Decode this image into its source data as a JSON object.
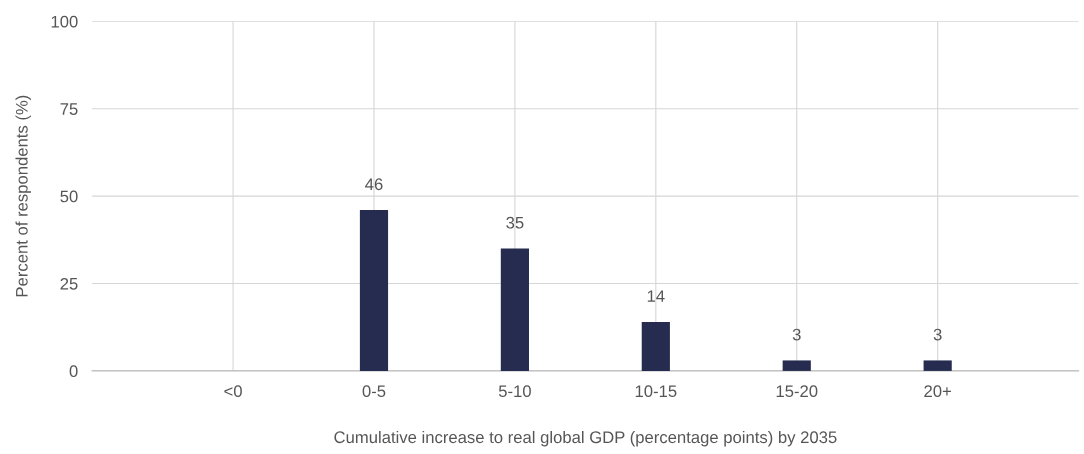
{
  "chart_data": {
    "type": "bar",
    "xlabel": "Cumulative increase to real global GDP (percentage points) by 2035",
    "ylabel": "Percent of respondents (%)",
    "categories": [
      "<0",
      "0-5",
      "5-10",
      "10-15",
      "15-20",
      "20+"
    ],
    "values": [
      0,
      46,
      35,
      14,
      3,
      3
    ],
    "value_labels": [
      null,
      "46",
      "35",
      "14",
      "3",
      "3"
    ],
    "color": "#252c4f",
    "ylim": [
      0,
      100
    ],
    "yticks": [
      0,
      25,
      50,
      75,
      100
    ],
    "grid": true,
    "legend": false
  }
}
